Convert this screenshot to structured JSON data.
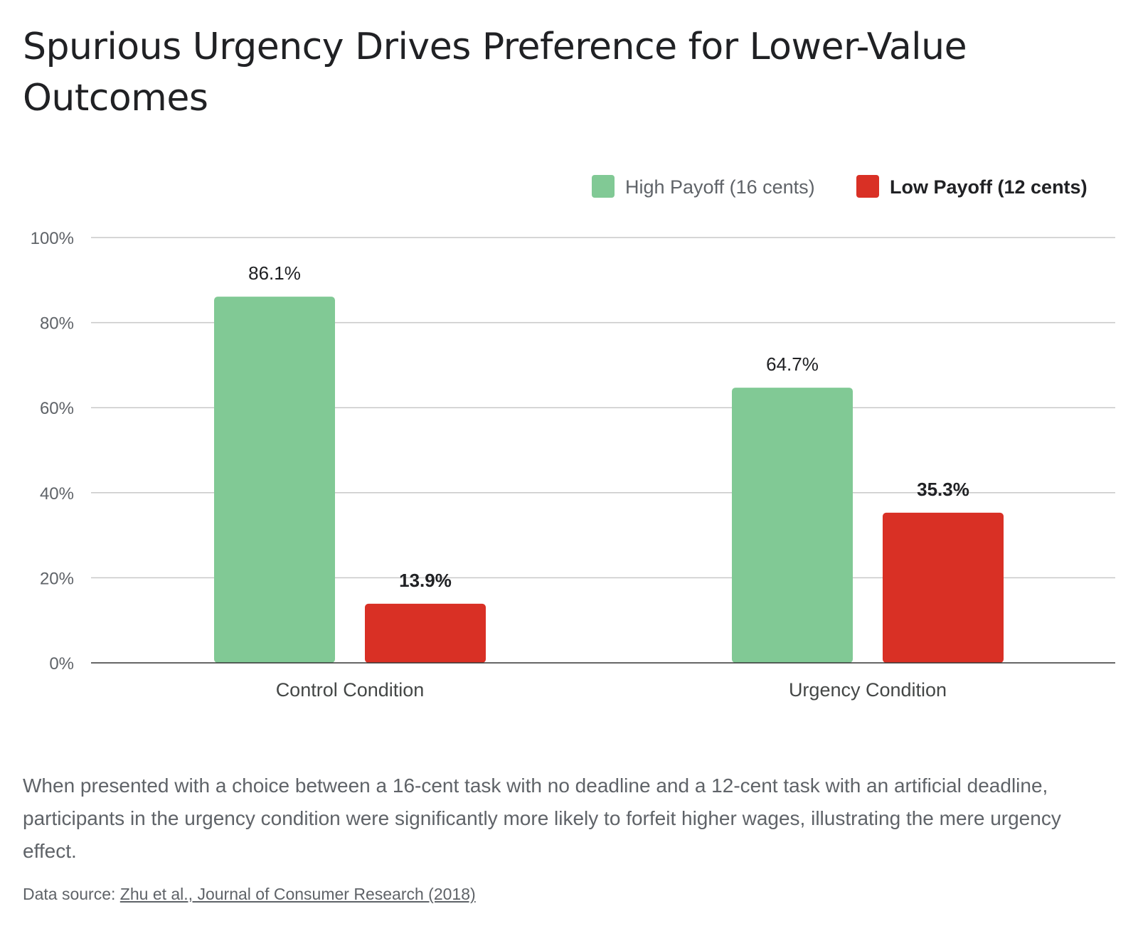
{
  "title": "Spurious Urgency Drives Preference for Lower-Value Outcomes",
  "caption": "When presented with a choice between a 16-cent task with no deadline and a 12-cent task with an artificial deadline, participants in the urgency condition were significantly more likely to forfeit higher wages, illustrating the mere urgency effect.",
  "source": {
    "prefix": "Data source: ",
    "link_text": "Zhu et al., Journal of Consumer Research (2018)"
  },
  "chart_data": {
    "type": "bar",
    "categories": [
      "Control Condition",
      "Urgency Condition"
    ],
    "series": [
      {
        "name": "High Payoff (16 cents)",
        "values": [
          86.1,
          64.7
        ],
        "color": "#81c995",
        "labels": [
          "86.1%",
          "64.7%"
        ],
        "label_bold": false
      },
      {
        "name": "Low Payoff (12 cents)",
        "values": [
          13.9,
          35.3
        ],
        "color": "#d93025",
        "labels": [
          "13.9%",
          "35.3%"
        ],
        "label_bold": true
      }
    ],
    "ylim": [
      0,
      100
    ],
    "yticks": [
      0,
      20,
      40,
      60,
      80,
      100
    ],
    "ytick_labels": [
      "0%",
      "20%",
      "40%",
      "60%",
      "80%",
      "100%"
    ],
    "grid": true,
    "legend": "top-right"
  }
}
